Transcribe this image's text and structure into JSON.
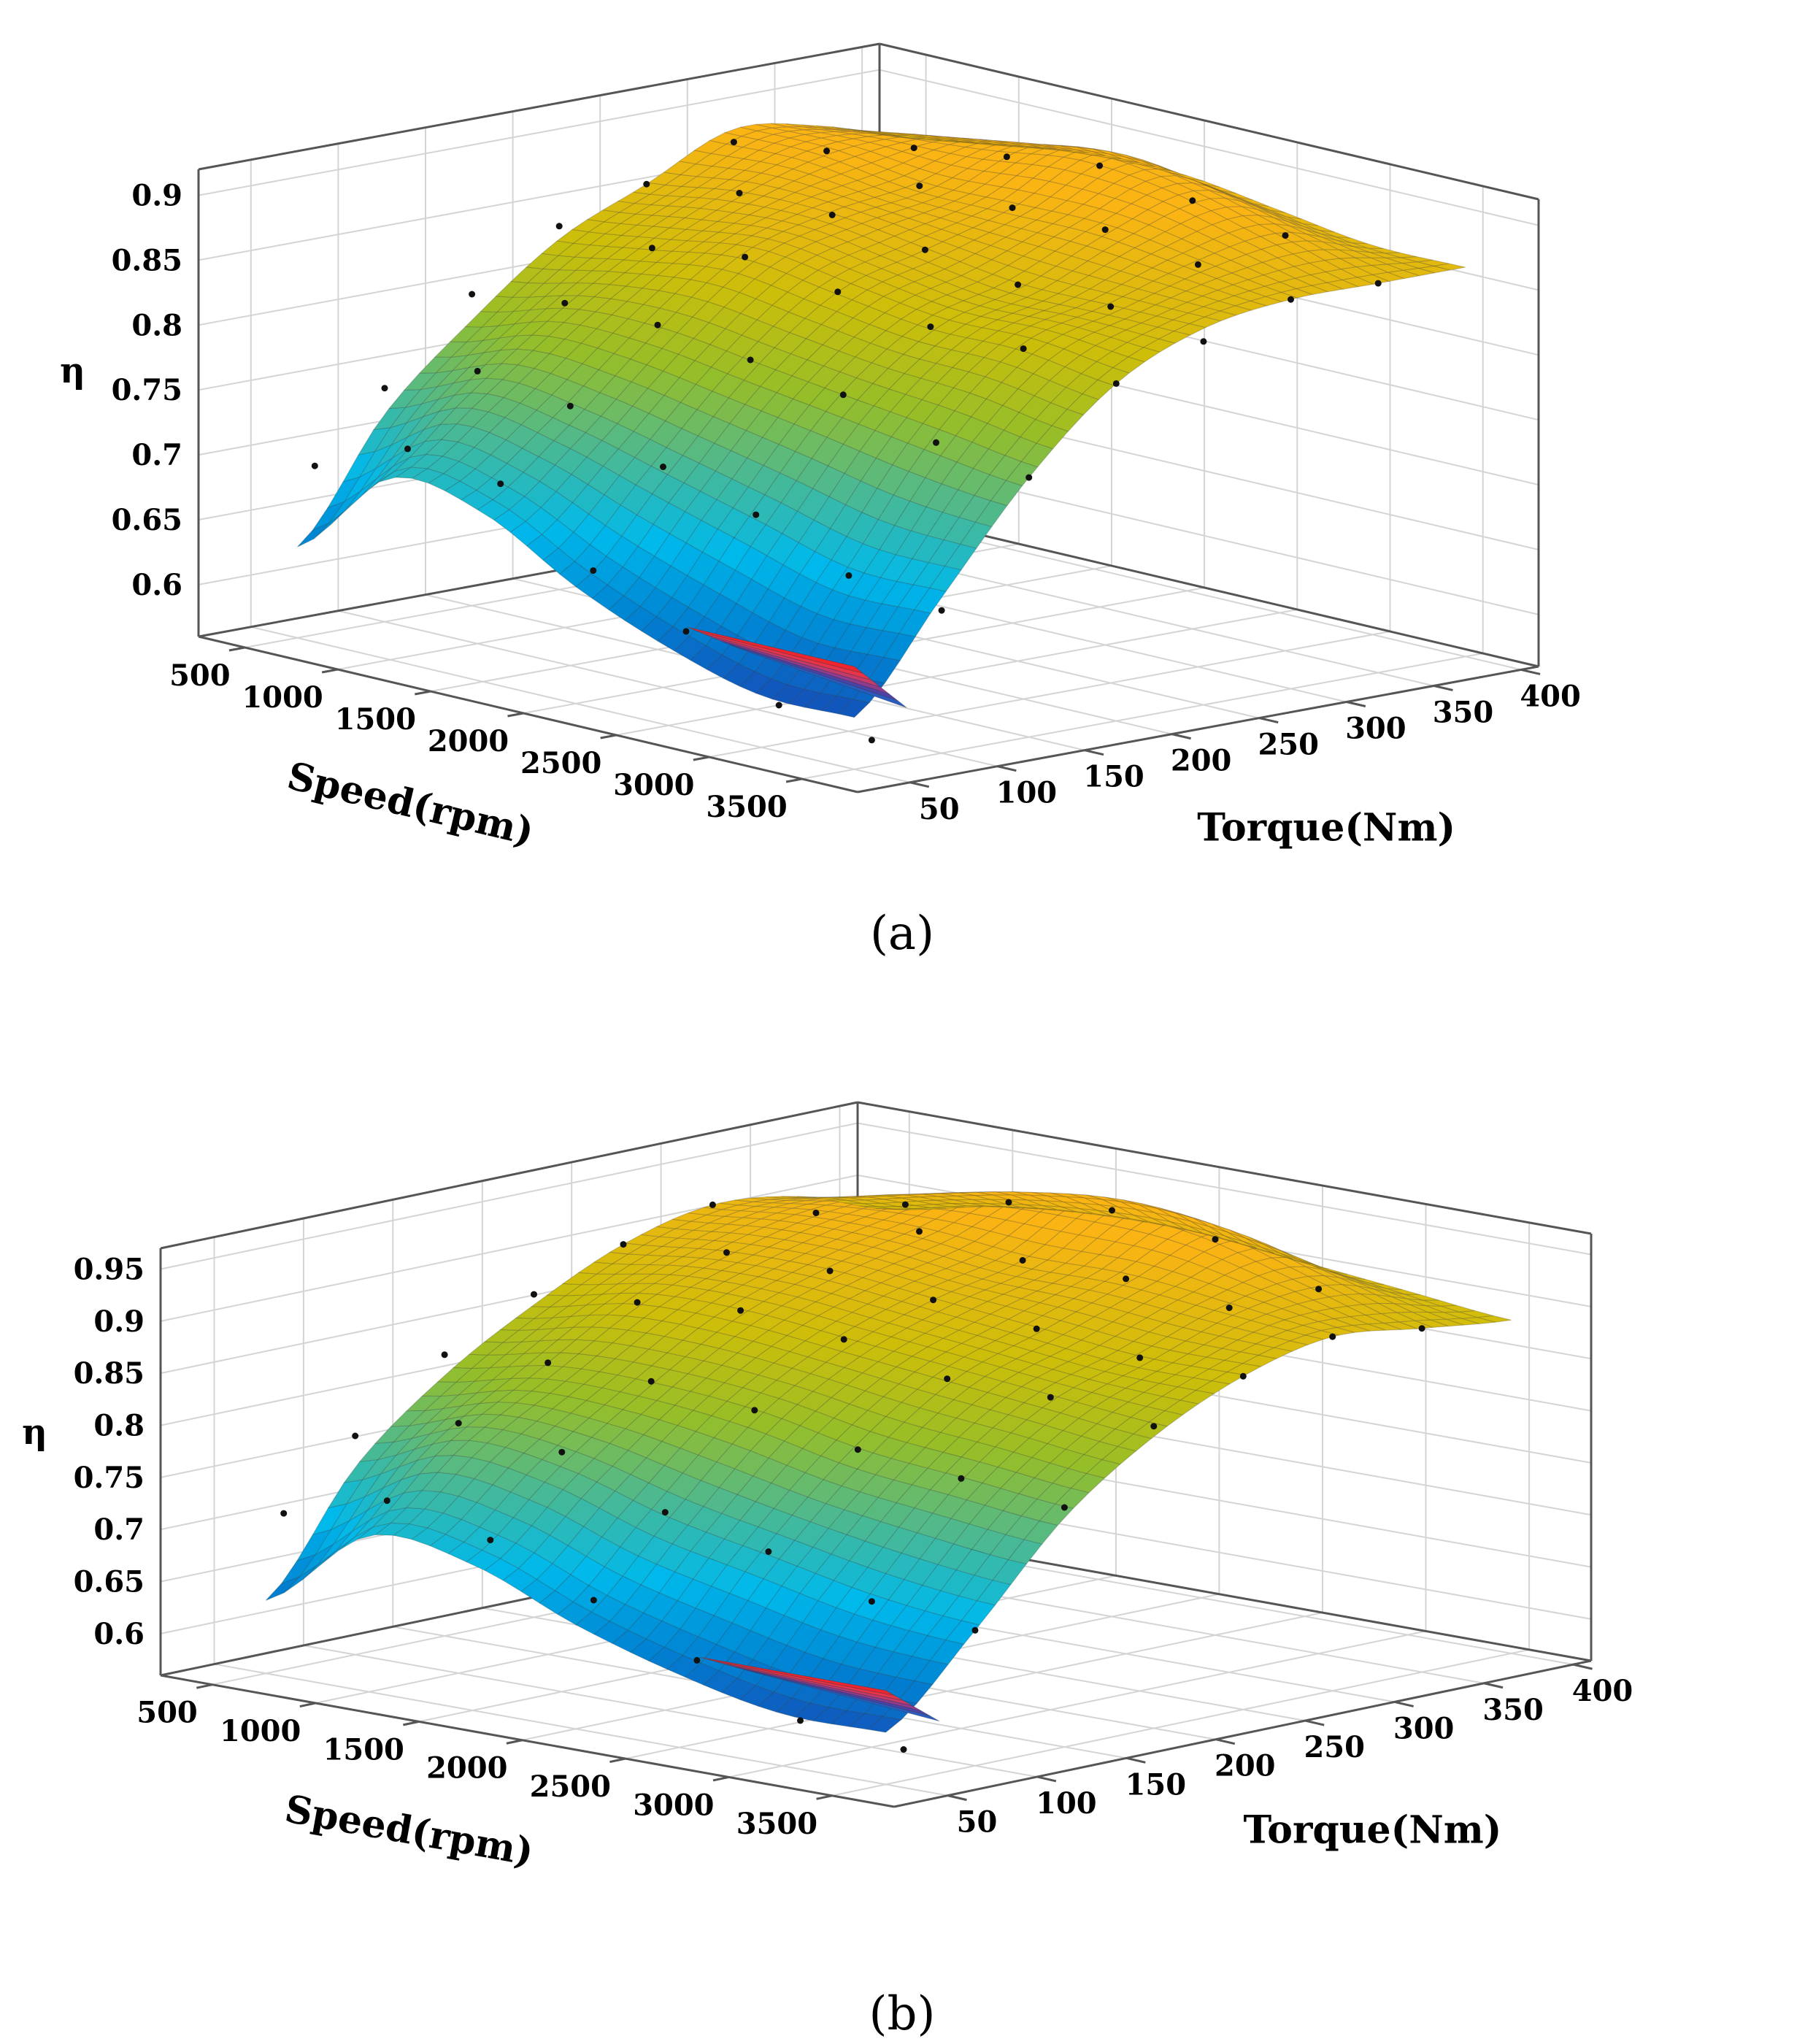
{
  "chart_data": [
    {
      "type": "surface",
      "panel_label": "(a)",
      "zlabel": "η",
      "xlabel": "Speed(rpm)",
      "ylabel": "Torque(Nm)",
      "z_ticks": [
        "0.9",
        "0.85",
        "0.8",
        "0.75",
        "0.7",
        "0.65",
        "0.6"
      ],
      "z_tick_values": [
        0.9,
        0.85,
        0.8,
        0.75,
        0.7,
        0.65,
        0.6
      ],
      "zlim": [
        0.56,
        0.92
      ],
      "speed_ticks": [
        "500",
        "1000",
        "1500",
        "2000",
        "2500",
        "3000",
        "3500"
      ],
      "speed_tick_values": [
        500,
        1000,
        1500,
        2000,
        2500,
        3000,
        3500
      ],
      "speed_range": [
        250,
        3800
      ],
      "torque_ticks": [
        "50",
        "100",
        "150",
        "200",
        "250",
        "300",
        "350",
        "400"
      ],
      "torque_tick_values": [
        50,
        100,
        150,
        200,
        250,
        300,
        350,
        400
      ],
      "torque_range": [
        20,
        410
      ],
      "surface": {
        "speed": [
          500,
          1000,
          1500,
          2000,
          2500,
          3000,
          3500
        ],
        "torque": [
          50,
          100,
          150,
          200,
          250,
          300,
          350,
          400
        ],
        "z": [
          [
            0.63,
            0.72,
            0.78,
            0.83,
            0.86,
            0.89,
            0.88,
            0.86
          ],
          [
            0.7,
            0.75,
            0.8,
            0.84,
            0.87,
            0.89,
            0.89,
            0.87
          ],
          [
            0.69,
            0.74,
            0.8,
            0.85,
            0.87,
            0.88,
            0.9,
            0.88
          ],
          [
            0.65,
            0.72,
            0.79,
            0.84,
            0.86,
            0.88,
            0.91,
            0.88
          ],
          [
            0.62,
            0.7,
            0.78,
            0.83,
            0.85,
            0.88,
            0.9,
            0.87
          ],
          [
            0.6,
            0.68,
            0.77,
            0.83,
            0.85,
            0.87,
            0.88,
            0.86
          ],
          [
            0.6,
            0.68,
            0.76,
            0.82,
            0.85,
            0.86,
            0.86,
            0.86
          ]
        ]
      },
      "points": [
        [
          500,
          60,
          0.69
        ],
        [
          500,
          100,
          0.74
        ],
        [
          500,
          150,
          0.8
        ],
        [
          500,
          200,
          0.84
        ],
        [
          500,
          250,
          0.86
        ],
        [
          500,
          300,
          0.88
        ],
        [
          1000,
          60,
          0.72
        ],
        [
          1000,
          100,
          0.77
        ],
        [
          1000,
          150,
          0.81
        ],
        [
          1000,
          200,
          0.84
        ],
        [
          1000,
          250,
          0.87
        ],
        [
          1000,
          300,
          0.89
        ],
        [
          1000,
          350,
          0.88
        ],
        [
          1500,
          60,
          0.71
        ],
        [
          1500,
          100,
          0.76
        ],
        [
          1500,
          150,
          0.81
        ],
        [
          1500,
          200,
          0.85
        ],
        [
          1500,
          250,
          0.87
        ],
        [
          1500,
          300,
          0.88
        ],
        [
          1500,
          350,
          0.89
        ],
        [
          2000,
          60,
          0.66
        ],
        [
          2000,
          100,
          0.73
        ],
        [
          2000,
          150,
          0.8
        ],
        [
          2000,
          200,
          0.84
        ],
        [
          2000,
          250,
          0.86
        ],
        [
          2000,
          300,
          0.88
        ],
        [
          2000,
          350,
          0.9
        ],
        [
          2500,
          60,
          0.63
        ],
        [
          2500,
          100,
          0.71
        ],
        [
          2500,
          150,
          0.79
        ],
        [
          2500,
          200,
          0.83
        ],
        [
          2500,
          250,
          0.85
        ],
        [
          2500,
          300,
          0.88
        ],
        [
          2500,
          350,
          0.89
        ],
        [
          3000,
          60,
          0.59
        ],
        [
          3000,
          100,
          0.68
        ],
        [
          3000,
          150,
          0.77
        ],
        [
          3000,
          200,
          0.83
        ],
        [
          3000,
          250,
          0.85
        ],
        [
          3000,
          300,
          0.87
        ],
        [
          3000,
          350,
          0.88
        ],
        [
          3500,
          60,
          0.58
        ],
        [
          3500,
          100,
          0.67
        ],
        [
          3500,
          150,
          0.76
        ],
        [
          3500,
          200,
          0.82
        ],
        [
          3500,
          250,
          0.84
        ],
        [
          3500,
          300,
          0.86
        ],
        [
          3500,
          350,
          0.86
        ]
      ]
    },
    {
      "type": "surface",
      "panel_label": "(b)",
      "zlabel": "η",
      "xlabel": "Speed(rpm)",
      "ylabel": "Torque(Nm)",
      "z_ticks": [
        "0.95",
        "0.9",
        "0.85",
        "0.8",
        "0.75",
        "0.7",
        "0.65",
        "0.6"
      ],
      "z_tick_values": [
        0.95,
        0.9,
        0.85,
        0.8,
        0.75,
        0.7,
        0.65,
        0.6
      ],
      "zlim": [
        0.56,
        0.97
      ],
      "speed_ticks": [
        "500",
        "1000",
        "1500",
        "2000",
        "2500",
        "3000",
        "3500"
      ],
      "speed_tick_values": [
        500,
        1000,
        1500,
        2000,
        2500,
        3000,
        3500
      ],
      "speed_range": [
        250,
        3800
      ],
      "torque_ticks": [
        "50",
        "100",
        "150",
        "200",
        "250",
        "300",
        "350",
        "400"
      ],
      "torque_tick_values": [
        50,
        100,
        150,
        200,
        250,
        300,
        350,
        400
      ],
      "torque_range": [
        20,
        410
      ],
      "surface": {
        "speed": [
          500,
          1000,
          1500,
          2000,
          2500,
          3000,
          3500
        ],
        "torque": [
          50,
          100,
          150,
          200,
          250,
          300,
          350,
          400
        ],
        "z": [
          [
            0.63,
            0.74,
            0.81,
            0.86,
            0.9,
            0.92,
            0.91,
            0.88
          ],
          [
            0.71,
            0.78,
            0.83,
            0.88,
            0.91,
            0.93,
            0.93,
            0.9
          ],
          [
            0.7,
            0.77,
            0.83,
            0.88,
            0.91,
            0.93,
            0.95,
            0.91
          ],
          [
            0.66,
            0.74,
            0.82,
            0.87,
            0.9,
            0.92,
            0.96,
            0.91
          ],
          [
            0.63,
            0.72,
            0.8,
            0.86,
            0.89,
            0.92,
            0.95,
            0.9
          ],
          [
            0.61,
            0.7,
            0.79,
            0.85,
            0.88,
            0.91,
            0.92,
            0.89
          ],
          [
            0.61,
            0.69,
            0.78,
            0.84,
            0.88,
            0.9,
            0.89,
            0.88
          ]
        ]
      },
      "points": [
        [
          500,
          60,
          0.71
        ],
        [
          500,
          100,
          0.77
        ],
        [
          500,
          150,
          0.83
        ],
        [
          500,
          200,
          0.87
        ],
        [
          500,
          250,
          0.9
        ],
        [
          500,
          300,
          0.92
        ],
        [
          1000,
          60,
          0.74
        ],
        [
          1000,
          100,
          0.8
        ],
        [
          1000,
          150,
          0.84
        ],
        [
          1000,
          200,
          0.88
        ],
        [
          1000,
          250,
          0.91
        ],
        [
          1000,
          300,
          0.93
        ],
        [
          1000,
          350,
          0.92
        ],
        [
          1500,
          60,
          0.72
        ],
        [
          1500,
          100,
          0.79
        ],
        [
          1500,
          150,
          0.84
        ],
        [
          1500,
          200,
          0.89
        ],
        [
          1500,
          250,
          0.91
        ],
        [
          1500,
          300,
          0.93
        ],
        [
          1500,
          350,
          0.94
        ],
        [
          2000,
          60,
          0.68
        ],
        [
          2000,
          100,
          0.75
        ],
        [
          2000,
          150,
          0.83
        ],
        [
          2000,
          200,
          0.88
        ],
        [
          2000,
          250,
          0.9
        ],
        [
          2000,
          300,
          0.92
        ],
        [
          2000,
          350,
          0.95
        ],
        [
          2500,
          60,
          0.64
        ],
        [
          2500,
          100,
          0.73
        ],
        [
          2500,
          150,
          0.81
        ],
        [
          2500,
          200,
          0.86
        ],
        [
          2500,
          250,
          0.89
        ],
        [
          2500,
          300,
          0.92
        ],
        [
          2500,
          350,
          0.94
        ],
        [
          3000,
          60,
          0.6
        ],
        [
          3000,
          100,
          0.7
        ],
        [
          3000,
          150,
          0.8
        ],
        [
          3000,
          200,
          0.86
        ],
        [
          3000,
          250,
          0.88
        ],
        [
          3000,
          300,
          0.91
        ],
        [
          3000,
          350,
          0.91
        ],
        [
          3500,
          60,
          0.59
        ],
        [
          3500,
          100,
          0.69
        ],
        [
          3500,
          150,
          0.79
        ],
        [
          3500,
          200,
          0.85
        ],
        [
          3500,
          250,
          0.88
        ],
        [
          3500,
          300,
          0.9
        ],
        [
          3500,
          350,
          0.89
        ]
      ]
    }
  ]
}
